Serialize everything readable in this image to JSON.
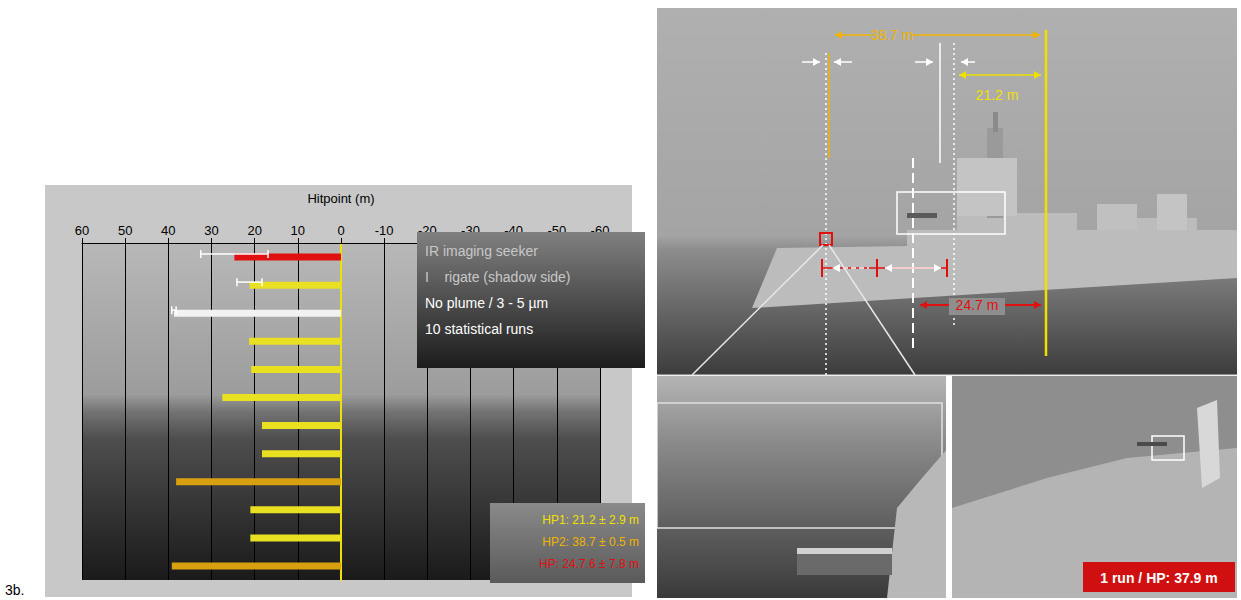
{
  "figure_label": "3b.",
  "chart_data": {
    "type": "bar",
    "orientation": "horizontal",
    "x_label": "Hitpoint (m)",
    "xlim": [
      60,
      -60
    ],
    "xticks": [
      60,
      50,
      40,
      30,
      20,
      10,
      0,
      -10,
      -20,
      -30,
      -40,
      -50,
      -60
    ],
    "grid": true,
    "tick_labels": "x",
    "categories": [
      null,
      null,
      null,
      null,
      null,
      null,
      null,
      null,
      null,
      null,
      null,
      null
    ],
    "values": [
      24.7,
      21.2,
      38.7,
      21.3,
      20.8,
      27.5,
      18.3,
      18.3,
      38.2,
      21.0,
      21.0,
      39.2
    ],
    "errors": [
      7.8,
      2.9,
      0.5,
      null,
      null,
      null,
      null,
      null,
      null,
      null,
      null,
      null
    ],
    "colors": [
      "#e01010",
      "#e8e020",
      "#f2f2f2",
      "#e8e020",
      "#e8e020",
      "#e8e020",
      "#e8e020",
      "#e8e020",
      "#d8a010",
      "#e8e020",
      "#e8e020",
      "#d8a010"
    ],
    "info_box": [
      {
        "text": "IR imaging seeker",
        "color": "#c8c8c8"
      },
      {
        "text": "I    rigate (shadow side)",
        "color": "#c8c8c8"
      },
      {
        "text": "No plume / 3 - 5 µm",
        "color": "#ffffff"
      },
      {
        "text": "10 statistical runs",
        "color": "#ffffff"
      }
    ],
    "results_box": [
      {
        "text": "HP1: 21.2 ± 2.9 m",
        "color": "#f0e000"
      },
      {
        "text": "HP2: 38.7 ± 0.5 m",
        "color": "#f0b400"
      },
      {
        "text": "HP: 24.7.6 ± 7.8 m",
        "color": "#e01010"
      }
    ]
  },
  "scene": {
    "distance_labels": [
      {
        "text": "38.7 m",
        "color": "#f0b400"
      },
      {
        "text": "21.2 m",
        "color": "#f0e000"
      },
      {
        "text": "24.7 m",
        "color": "#e01010"
      }
    ],
    "result_label": "1 run / HP: 37.9 m"
  }
}
